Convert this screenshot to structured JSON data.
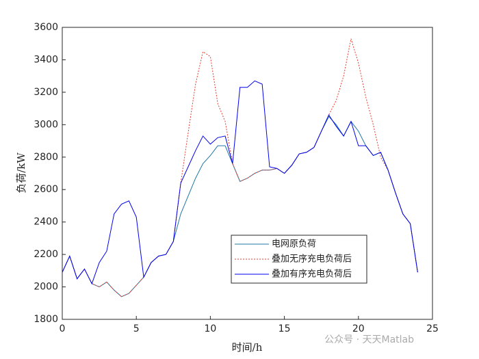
{
  "chart_data": {
    "type": "line",
    "xlabel": "时间/h",
    "ylabel": "负荷/kW",
    "xlim": [
      0,
      25
    ],
    "ylim": [
      1800,
      3600
    ],
    "xticks": [
      0,
      5,
      10,
      15,
      20,
      25
    ],
    "yticks": [
      1800,
      2000,
      2200,
      2400,
      2600,
      2800,
      3000,
      3200,
      3400,
      3600
    ],
    "legend_position": "lower right",
    "x": [
      0,
      0.5,
      1,
      1.5,
      2,
      2.5,
      3,
      3.5,
      4,
      4.5,
      5,
      5.5,
      6,
      6.5,
      7,
      7.5,
      8,
      8.5,
      9,
      9.5,
      10,
      10.5,
      11,
      11.5,
      12,
      12.5,
      13,
      13.5,
      14,
      14.5,
      15,
      15.5,
      16,
      16.5,
      17,
      17.5,
      18,
      18.5,
      19,
      19.5,
      20,
      20.5,
      21,
      21.5,
      22,
      22.5,
      23,
      23.5,
      24
    ],
    "series": [
      {
        "name": "电网原负荷",
        "color": "#1f77a4",
        "dash": "none",
        "values": [
          2090,
          2190,
          2050,
          2110,
          2020,
          2000,
          2030,
          1980,
          1940,
          1960,
          2010,
          2060,
          2150,
          2190,
          2200,
          2280,
          2450,
          2560,
          2670,
          2760,
          2810,
          2870,
          2870,
          2760,
          2650,
          2670,
          2700,
          2720,
          2720,
          2730,
          2700,
          2750,
          2820,
          2830,
          2860,
          2960,
          3050,
          3000,
          2930,
          3020,
          2960,
          2870,
          2810,
          2830,
          2720,
          2580,
          2450,
          2390,
          2090
        ]
      },
      {
        "name": "叠加无序充电负荷后",
        "color": "#e8362a",
        "dash": "2 2",
        "values": [
          2090,
          2190,
          2050,
          2110,
          2020,
          2000,
          2030,
          1980,
          1940,
          1960,
          2010,
          2060,
          2150,
          2190,
          2200,
          2280,
          2640,
          2950,
          3250,
          3450,
          3420,
          3130,
          3020,
          2760,
          2650,
          2670,
          2700,
          2720,
          2720,
          2730,
          2700,
          2750,
          2820,
          2830,
          2860,
          2960,
          3060,
          3150,
          3300,
          3530,
          3380,
          3170,
          3000,
          2800,
          2720,
          2580,
          2450,
          2390,
          2090
        ]
      },
      {
        "name": "叠加有序充电负荷后",
        "color": "#0000ee",
        "dash": "none",
        "values": [
          2090,
          2190,
          2050,
          2110,
          2020,
          2150,
          2220,
          2450,
          2510,
          2530,
          2430,
          2060,
          2150,
          2190,
          2200,
          2280,
          2640,
          2740,
          2840,
          2930,
          2880,
          2920,
          2930,
          2760,
          3230,
          3230,
          3270,
          3250,
          2740,
          2730,
          2700,
          2750,
          2820,
          2830,
          2860,
          2960,
          3060,
          2990,
          2930,
          3020,
          2870,
          2870,
          2810,
          2830,
          2720,
          2580,
          2450,
          2390,
          2090
        ]
      }
    ]
  },
  "watermark": "公众号 · 天天Matlab"
}
